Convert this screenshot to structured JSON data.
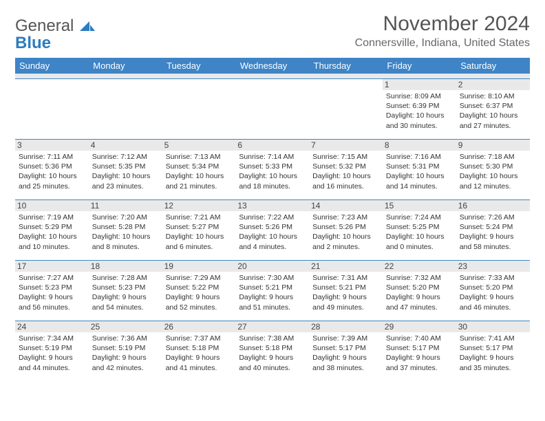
{
  "logo": {
    "word1": "General",
    "word2": "Blue"
  },
  "title": "November 2024",
  "location": "Connersville, Indiana, United States",
  "colors": {
    "header_bg": "#3e84c6",
    "header_text": "#ffffff",
    "daynum_bg": "#e9e9e9",
    "border": "#3e84c6",
    "title_text": "#555555",
    "body_text": "#333333"
  },
  "weekdays": [
    "Sunday",
    "Monday",
    "Tuesday",
    "Wednesday",
    "Thursday",
    "Friday",
    "Saturday"
  ],
  "weeks": [
    [
      null,
      null,
      null,
      null,
      null,
      {
        "n": "1",
        "sunrise": "8:09 AM",
        "sunset": "6:39 PM",
        "daylight": "10 hours and 30 minutes."
      },
      {
        "n": "2",
        "sunrise": "8:10 AM",
        "sunset": "6:37 PM",
        "daylight": "10 hours and 27 minutes."
      }
    ],
    [
      {
        "n": "3",
        "sunrise": "7:11 AM",
        "sunset": "5:36 PM",
        "daylight": "10 hours and 25 minutes."
      },
      {
        "n": "4",
        "sunrise": "7:12 AM",
        "sunset": "5:35 PM",
        "daylight": "10 hours and 23 minutes."
      },
      {
        "n": "5",
        "sunrise": "7:13 AM",
        "sunset": "5:34 PM",
        "daylight": "10 hours and 21 minutes."
      },
      {
        "n": "6",
        "sunrise": "7:14 AM",
        "sunset": "5:33 PM",
        "daylight": "10 hours and 18 minutes."
      },
      {
        "n": "7",
        "sunrise": "7:15 AM",
        "sunset": "5:32 PM",
        "daylight": "10 hours and 16 minutes."
      },
      {
        "n": "8",
        "sunrise": "7:16 AM",
        "sunset": "5:31 PM",
        "daylight": "10 hours and 14 minutes."
      },
      {
        "n": "9",
        "sunrise": "7:18 AM",
        "sunset": "5:30 PM",
        "daylight": "10 hours and 12 minutes."
      }
    ],
    [
      {
        "n": "10",
        "sunrise": "7:19 AM",
        "sunset": "5:29 PM",
        "daylight": "10 hours and 10 minutes."
      },
      {
        "n": "11",
        "sunrise": "7:20 AM",
        "sunset": "5:28 PM",
        "daylight": "10 hours and 8 minutes."
      },
      {
        "n": "12",
        "sunrise": "7:21 AM",
        "sunset": "5:27 PM",
        "daylight": "10 hours and 6 minutes."
      },
      {
        "n": "13",
        "sunrise": "7:22 AM",
        "sunset": "5:26 PM",
        "daylight": "10 hours and 4 minutes."
      },
      {
        "n": "14",
        "sunrise": "7:23 AM",
        "sunset": "5:26 PM",
        "daylight": "10 hours and 2 minutes."
      },
      {
        "n": "15",
        "sunrise": "7:24 AM",
        "sunset": "5:25 PM",
        "daylight": "10 hours and 0 minutes."
      },
      {
        "n": "16",
        "sunrise": "7:26 AM",
        "sunset": "5:24 PM",
        "daylight": "9 hours and 58 minutes."
      }
    ],
    [
      {
        "n": "17",
        "sunrise": "7:27 AM",
        "sunset": "5:23 PM",
        "daylight": "9 hours and 56 minutes."
      },
      {
        "n": "18",
        "sunrise": "7:28 AM",
        "sunset": "5:23 PM",
        "daylight": "9 hours and 54 minutes."
      },
      {
        "n": "19",
        "sunrise": "7:29 AM",
        "sunset": "5:22 PM",
        "daylight": "9 hours and 52 minutes."
      },
      {
        "n": "20",
        "sunrise": "7:30 AM",
        "sunset": "5:21 PM",
        "daylight": "9 hours and 51 minutes."
      },
      {
        "n": "21",
        "sunrise": "7:31 AM",
        "sunset": "5:21 PM",
        "daylight": "9 hours and 49 minutes."
      },
      {
        "n": "22",
        "sunrise": "7:32 AM",
        "sunset": "5:20 PM",
        "daylight": "9 hours and 47 minutes."
      },
      {
        "n": "23",
        "sunrise": "7:33 AM",
        "sunset": "5:20 PM",
        "daylight": "9 hours and 46 minutes."
      }
    ],
    [
      {
        "n": "24",
        "sunrise": "7:34 AM",
        "sunset": "5:19 PM",
        "daylight": "9 hours and 44 minutes."
      },
      {
        "n": "25",
        "sunrise": "7:36 AM",
        "sunset": "5:19 PM",
        "daylight": "9 hours and 42 minutes."
      },
      {
        "n": "26",
        "sunrise": "7:37 AM",
        "sunset": "5:18 PM",
        "daylight": "9 hours and 41 minutes."
      },
      {
        "n": "27",
        "sunrise": "7:38 AM",
        "sunset": "5:18 PM",
        "daylight": "9 hours and 40 minutes."
      },
      {
        "n": "28",
        "sunrise": "7:39 AM",
        "sunset": "5:17 PM",
        "daylight": "9 hours and 38 minutes."
      },
      {
        "n": "29",
        "sunrise": "7:40 AM",
        "sunset": "5:17 PM",
        "daylight": "9 hours and 37 minutes."
      },
      {
        "n": "30",
        "sunrise": "7:41 AM",
        "sunset": "5:17 PM",
        "daylight": "9 hours and 35 minutes."
      }
    ]
  ],
  "labels": {
    "sunrise": "Sunrise: ",
    "sunset": "Sunset: ",
    "daylight": "Daylight: "
  }
}
